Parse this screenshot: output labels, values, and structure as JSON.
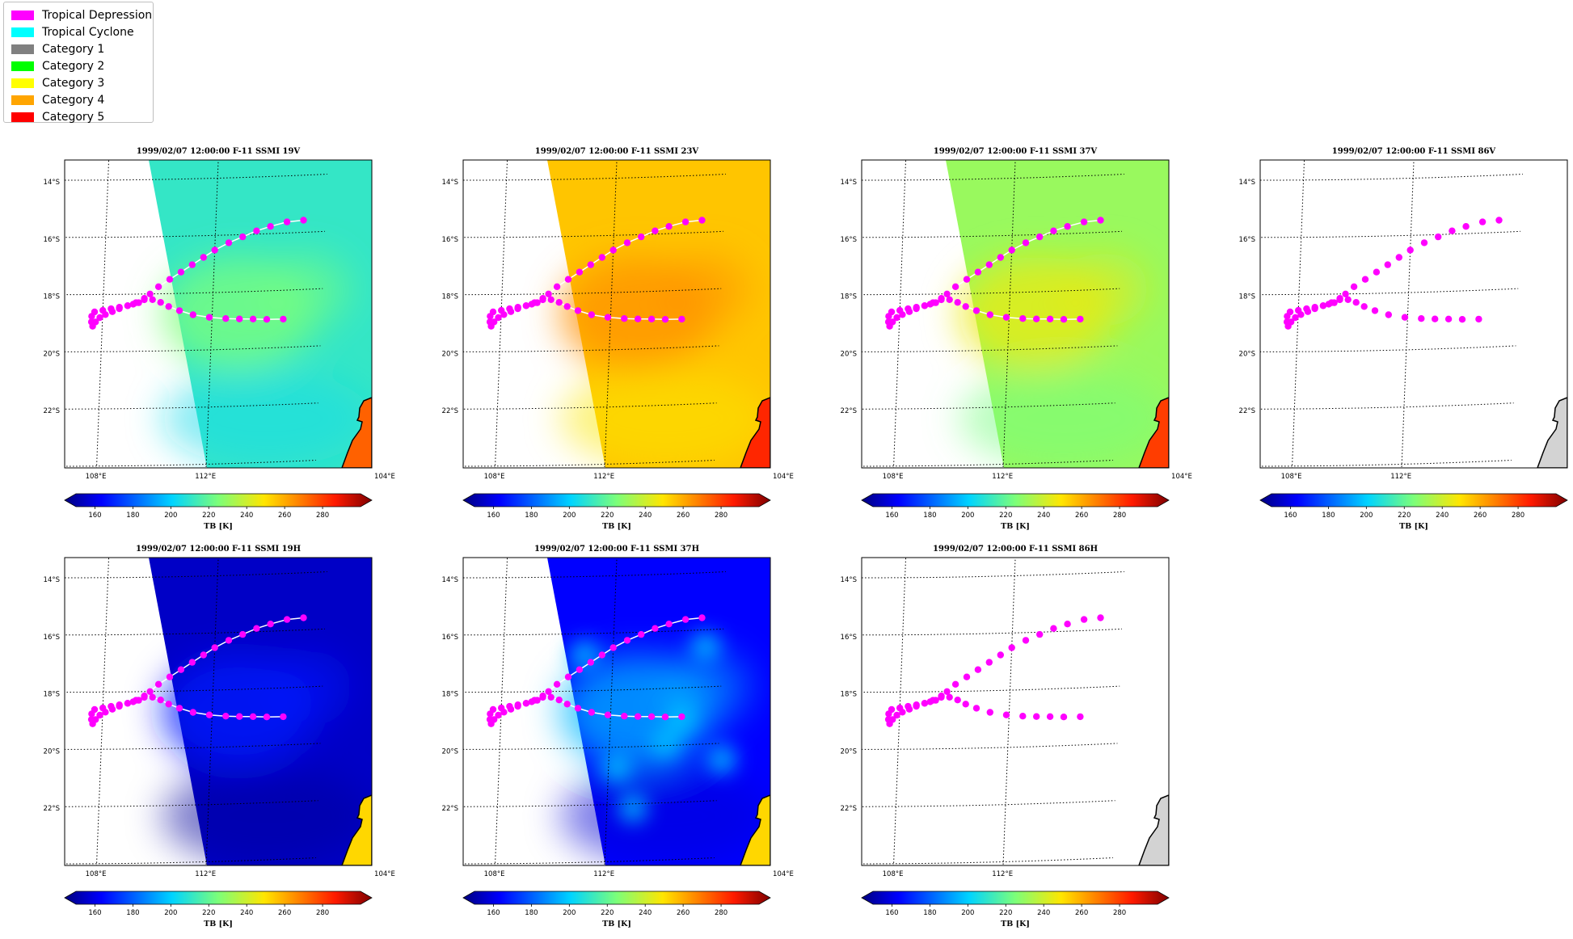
{
  "legend": {
    "items": [
      {
        "label": "Tropical Depression",
        "color": "#ff00ff"
      },
      {
        "label": "Tropical Cyclone",
        "color": "#00ffff"
      },
      {
        "label": "Category 1",
        "color": "#808080"
      },
      {
        "label": "Category 2",
        "color": "#00ff00"
      },
      {
        "label": "Category 3",
        "color": "#ffff00"
      },
      {
        "label": "Category 4",
        "color": "#ffa500"
      },
      {
        "label": "Category 5",
        "color": "#ff0000"
      }
    ]
  },
  "chart_data": [
    {
      "type": "heatmap",
      "title": "1999/02/07 12:00:00  F-11 SSMI 19V",
      "channel": "19V",
      "background_tb": 212,
      "cyclone_core_tb": 225,
      "land_tb": 270,
      "swath": "partial",
      "lat_ticks": [
        "14°S",
        "16°S",
        "18°S",
        "20°S",
        "22°S"
      ],
      "lon_ticks": [
        "104°E",
        "108°E",
        "112°E"
      ],
      "track_line": true,
      "colorbar": {
        "label": "TB [K]",
        "range": [
          150,
          300
        ],
        "ticks": [
          "160",
          "180",
          "200",
          "220",
          "240",
          "260",
          "280"
        ]
      }
    },
    {
      "type": "heatmap",
      "title": "1999/02/07 12:00:00  F-11 SSMI 23V",
      "channel": "23V",
      "background_tb": 253,
      "cyclone_core_tb": 262,
      "land_tb": 280,
      "swath": "partial",
      "lat_ticks": [
        "14°S",
        "16°S",
        "18°S",
        "20°S",
        "22°S"
      ],
      "lon_ticks": [
        "104°E",
        "108°E",
        "112°E"
      ],
      "track_line": true,
      "colorbar": {
        "label": "TB [K]",
        "range": [
          150,
          300
        ],
        "ticks": [
          "160",
          "180",
          "200",
          "220",
          "240",
          "260",
          "280"
        ]
      }
    },
    {
      "type": "heatmap",
      "title": "1999/02/07 12:00:00  F-11 SSMI 37V",
      "channel": "37V",
      "background_tb": 230,
      "cyclone_core_tb": 244,
      "land_tb": 276,
      "swath": "partial",
      "lat_ticks": [
        "14°S",
        "16°S",
        "18°S",
        "20°S",
        "22°S"
      ],
      "lon_ticks": [
        "104°E",
        "108°E",
        "112°E"
      ],
      "track_line": true,
      "colorbar": {
        "label": "TB [K]",
        "range": [
          150,
          300
        ],
        "ticks": [
          "160",
          "180",
          "200",
          "220",
          "240",
          "260",
          "280"
        ]
      }
    },
    {
      "type": "heatmap",
      "title": "1999/02/07 12:00:00  F-11 SSMI 86V",
      "channel": "86V",
      "background_tb": null,
      "cyclone_core_tb": null,
      "land_tb": null,
      "swath": "none",
      "lat_ticks": [
        "14°S",
        "16°S",
        "18°S",
        "20°S",
        "22°S"
      ],
      "lon_ticks": [
        "104°E",
        "108°E",
        "112°E"
      ],
      "track_line": false,
      "colorbar": {
        "label": "TB [K]",
        "range": [
          150,
          300
        ],
        "ticks": [
          "160",
          "180",
          "200",
          "220",
          "240",
          "260",
          "280"
        ]
      }
    },
    {
      "type": "heatmap",
      "title": "1999/02/07 12:00:00  F-11 SSMI 19H",
      "channel": "19H",
      "background_tb": 160,
      "cyclone_core_tb": 172,
      "land_tb": 250,
      "swath": "partial",
      "lat_ticks": [
        "14°S",
        "16°S",
        "18°S",
        "20°S",
        "22°S"
      ],
      "lon_ticks": [
        "104°E",
        "108°E",
        "112°E"
      ],
      "track_line": true,
      "colorbar": {
        "label": "TB [K]",
        "range": [
          150,
          300
        ],
        "ticks": [
          "160",
          "180",
          "200",
          "220",
          "240",
          "260",
          "280"
        ]
      }
    },
    {
      "type": "heatmap",
      "title": "1999/02/07 12:00:00  F-11 SSMI 37H",
      "channel": "37H",
      "background_tb": 168,
      "cyclone_core_tb": 198,
      "land_tb": 250,
      "swath": "partial",
      "lat_ticks": [
        "14°S",
        "16°S",
        "18°S",
        "20°S",
        "22°S"
      ],
      "lon_ticks": [
        "104°E",
        "108°E",
        "112°E"
      ],
      "track_line": true,
      "colorbar": {
        "label": "TB [K]",
        "range": [
          150,
          300
        ],
        "ticks": [
          "160",
          "180",
          "200",
          "220",
          "240",
          "260",
          "280"
        ]
      }
    },
    {
      "type": "heatmap",
      "title": "1999/02/07 12:00:00  F-11 SSMI 86H",
      "channel": "86H",
      "background_tb": null,
      "cyclone_core_tb": null,
      "land_tb": null,
      "swath": "none",
      "lat_ticks": [
        "14°S",
        "16°S",
        "18°S",
        "20°S",
        "22°S"
      ],
      "lon_ticks": [
        "104°E",
        "108°E",
        "112°E"
      ],
      "track_line": false,
      "colorbar": {
        "label": "TB [K]",
        "range": [
          150,
          300
        ],
        "ticks": [
          "160",
          "180",
          "200",
          "220",
          "240",
          "260",
          "280"
        ]
      }
    }
  ],
  "track": {
    "category": "Tropical Depression",
    "points": [
      {
        "lon": 115.2,
        "lat": -15.5
      },
      {
        "lon": 114.6,
        "lat": -15.55
      },
      {
        "lon": 114.0,
        "lat": -15.7
      },
      {
        "lon": 113.5,
        "lat": -15.85
      },
      {
        "lon": 113.0,
        "lat": -16.05
      },
      {
        "lon": 112.5,
        "lat": -16.25
      },
      {
        "lon": 112.0,
        "lat": -16.5
      },
      {
        "lon": 111.6,
        "lat": -16.75
      },
      {
        "lon": 111.2,
        "lat": -17.0
      },
      {
        "lon": 110.8,
        "lat": -17.25
      },
      {
        "lon": 110.4,
        "lat": -17.5
      },
      {
        "lon": 110.0,
        "lat": -17.75
      },
      {
        "lon": 109.7,
        "lat": -18.0
      },
      {
        "lon": 109.5,
        "lat": -18.15
      },
      {
        "lon": 109.2,
        "lat": -18.3
      },
      {
        "lon": 108.9,
        "lat": -18.4
      },
      {
        "lon": 108.6,
        "lat": -18.5
      },
      {
        "lon": 108.35,
        "lat": -18.6
      },
      {
        "lon": 108.1,
        "lat": -18.7
      },
      {
        "lon": 107.9,
        "lat": -18.8
      },
      {
        "lon": 107.75,
        "lat": -18.95
      },
      {
        "lon": 107.65,
        "lat": -19.1
      },
      {
        "lon": 107.6,
        "lat": -18.95
      },
      {
        "lon": 107.6,
        "lat": -18.75
      },
      {
        "lon": 107.7,
        "lat": -18.6
      },
      {
        "lon": 108.0,
        "lat": -18.55
      },
      {
        "lon": 108.3,
        "lat": -18.5
      },
      {
        "lon": 108.6,
        "lat": -18.45
      },
      {
        "lon": 108.9,
        "lat": -18.4
      },
      {
        "lon": 109.1,
        "lat": -18.35
      },
      {
        "lon": 109.3,
        "lat": -18.3
      },
      {
        "lon": 109.5,
        "lat": -18.2
      },
      {
        "lon": 109.8,
        "lat": -18.2
      },
      {
        "lon": 110.1,
        "lat": -18.3
      },
      {
        "lon": 110.4,
        "lat": -18.45
      },
      {
        "lon": 110.8,
        "lat": -18.6
      },
      {
        "lon": 111.3,
        "lat": -18.75
      },
      {
        "lon": 111.9,
        "lat": -18.85
      },
      {
        "lon": 112.5,
        "lat": -18.9
      },
      {
        "lon": 113.0,
        "lat": -18.92
      },
      {
        "lon": 113.5,
        "lat": -18.93
      },
      {
        "lon": 114.0,
        "lat": -18.95
      },
      {
        "lon": 114.6,
        "lat": -18.95
      }
    ]
  }
}
